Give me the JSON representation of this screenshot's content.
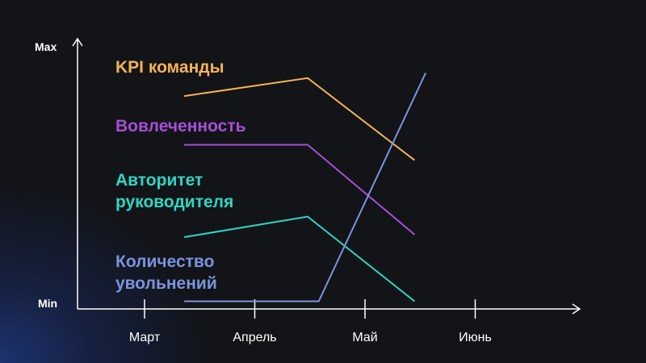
{
  "chart_data": {
    "type": "line",
    "y_axis": {
      "min_label": "Min",
      "max_label": "Max"
    },
    "categories": [
      "Март",
      "Апрель",
      "Май",
      "Июнь"
    ],
    "x_range": [
      0.36,
      3.0
    ],
    "y_range": [
      0,
      100
    ],
    "grid": false,
    "legend": "inline",
    "series": [
      {
        "name": "KPI команды",
        "label_lines": [
          "KPI команды"
        ],
        "color": "#f5b352",
        "points": [
          [
            0.36,
            83
          ],
          [
            1.48,
            90
          ],
          [
            2.45,
            58
          ]
        ]
      },
      {
        "name": "Вовлеченность",
        "label_lines": [
          "Вовлеченность"
        ],
        "color": "#a84ed6",
        "points": [
          [
            0.36,
            64
          ],
          [
            1.48,
            64
          ],
          [
            2.45,
            29
          ]
        ]
      },
      {
        "name": "Авторитет руководителя",
        "label_lines": [
          "Авторитет",
          "руководителя"
        ],
        "color": "#2fd6c3",
        "points": [
          [
            0.36,
            28
          ],
          [
            1.48,
            36
          ],
          [
            2.45,
            3
          ]
        ]
      },
      {
        "name": "Количество увольнений",
        "label_lines": [
          "Количество",
          "увольнений"
        ],
        "color": "#7b94dd",
        "points": [
          [
            0.36,
            3
          ],
          [
            1.58,
            3
          ],
          [
            2.55,
            92
          ]
        ]
      }
    ]
  }
}
